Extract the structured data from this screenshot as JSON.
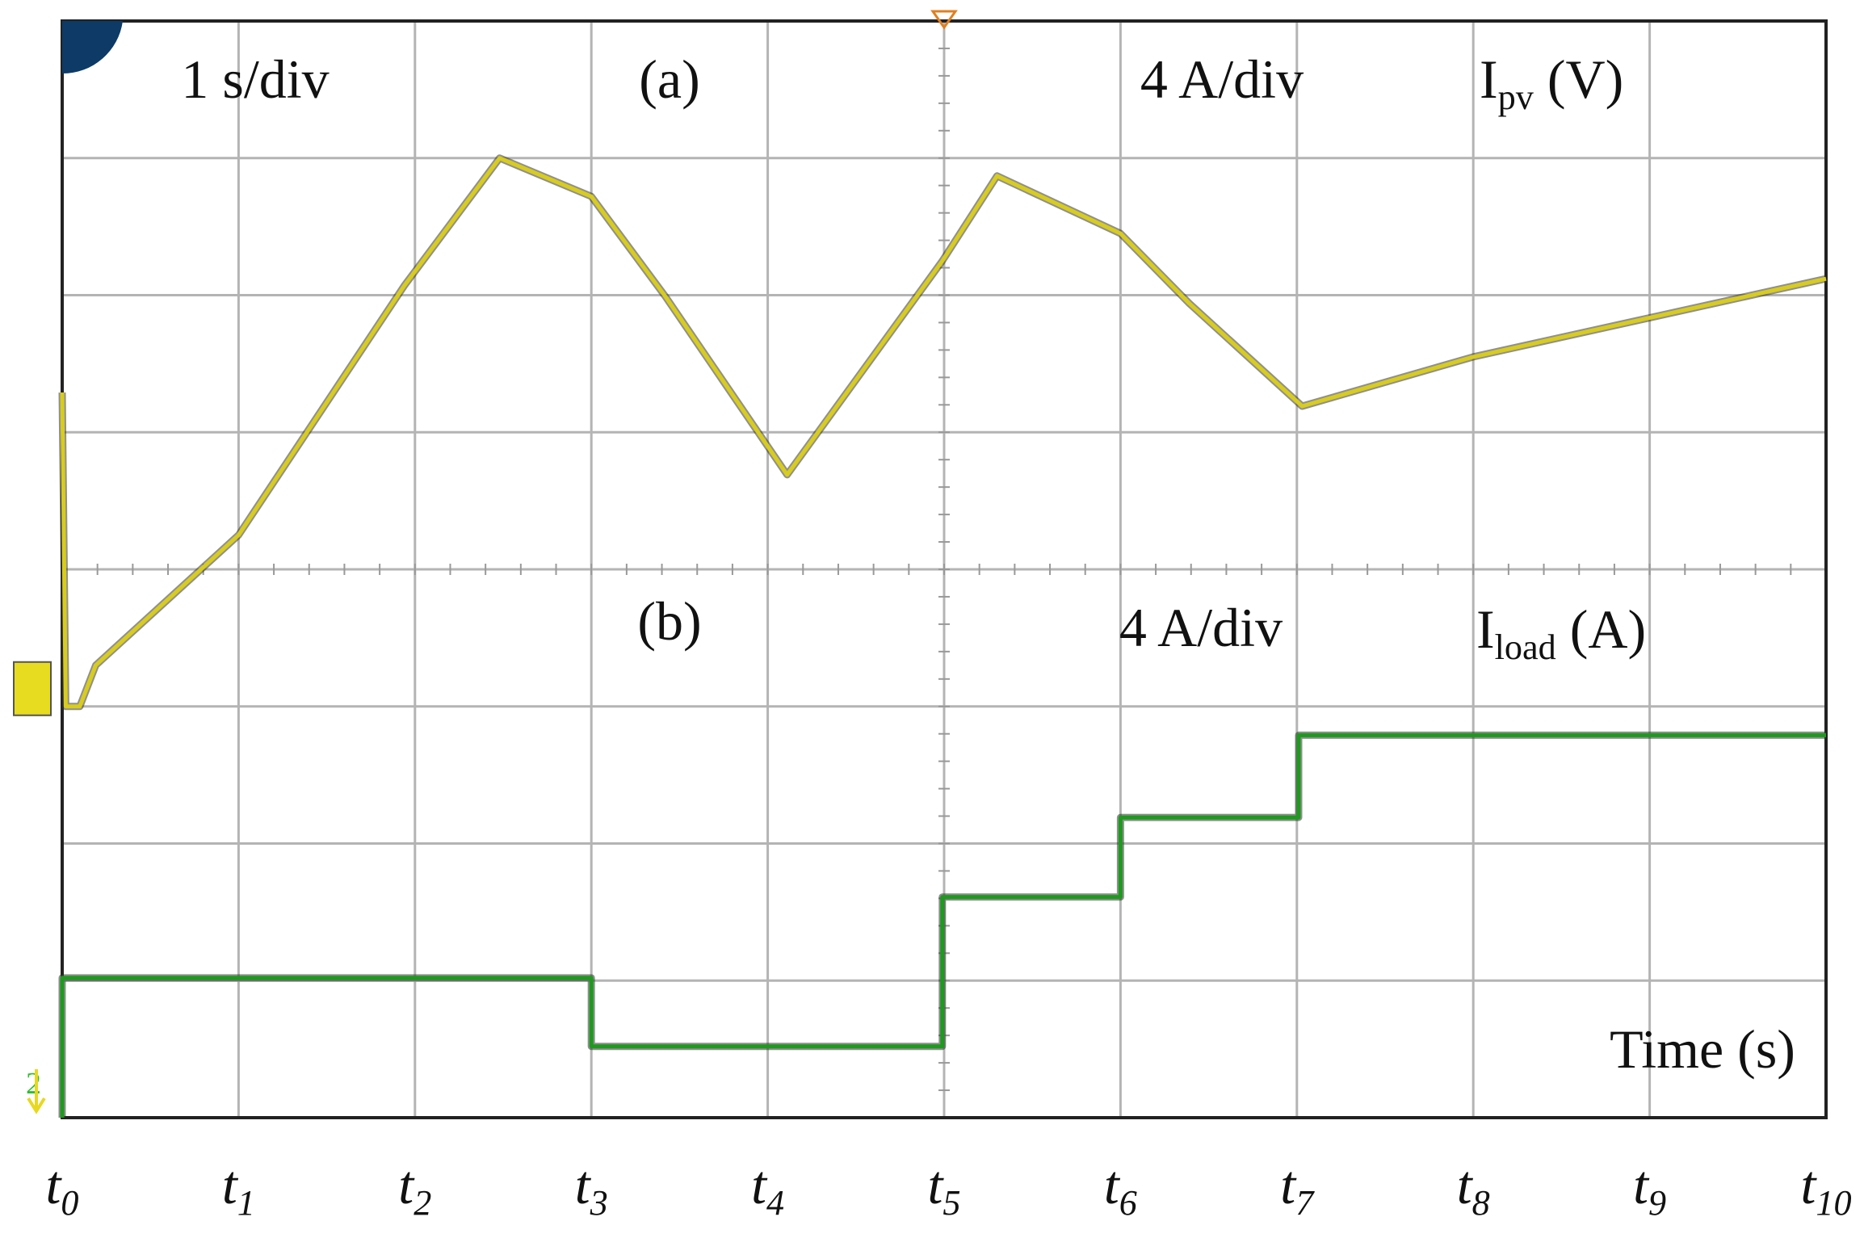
{
  "chart_data": {
    "type": "line",
    "annotations": [
      "1 s/div",
      "(a)",
      "4 A/div",
      "Ipv (V)",
      "(b)",
      "4 A/div",
      "Iload (A)",
      "Time (s)"
    ],
    "channel_marker": "2",
    "xlim": [
      0,
      10
    ],
    "ylim": [
      0,
      8
    ],
    "xticks": [
      {
        "value": 0,
        "label": "t0"
      },
      {
        "value": 1,
        "label": "t1"
      },
      {
        "value": 2,
        "label": "t2"
      },
      {
        "value": 3,
        "label": "t3"
      },
      {
        "value": 4,
        "label": "t4"
      },
      {
        "value": 5,
        "label": "t5"
      },
      {
        "value": 6,
        "label": "t6"
      },
      {
        "value": 7,
        "label": "t7"
      },
      {
        "value": 8,
        "label": "t8"
      },
      {
        "value": 9,
        "label": "t9"
      },
      {
        "value": 10,
        "label": "t10"
      }
    ],
    "yticks": [
      0,
      1,
      2,
      3,
      4,
      5,
      6,
      7,
      8
    ],
    "grid": true,
    "series": [
      {
        "color": "#d8cc1c",
        "x": [
          0,
          0.02,
          0.1,
          0.19,
          1.0,
          1.94,
          2.48,
          3.0,
          3.42,
          4.11,
          4.99,
          5.3,
          6.0,
          6.39,
          7.03,
          8.0,
          10.0
        ],
        "values": [
          5.29,
          3.0,
          3.0,
          3.3,
          4.25,
          6.07,
          7.0,
          6.72,
          5.99,
          4.69,
          6.25,
          6.87,
          6.45,
          5.94,
          5.19,
          5.55,
          6.12
        ]
      },
      {
        "color": "#1e9a1e",
        "x": [
          0,
          0,
          3.0,
          3.0,
          4.99,
          4.99,
          6.0,
          6.0,
          7.01,
          7.01,
          10.0
        ],
        "values": [
          0,
          1.02,
          1.02,
          0.52,
          0.52,
          1.61,
          1.61,
          2.19,
          2.19,
          2.79,
          2.79
        ]
      }
    ]
  }
}
